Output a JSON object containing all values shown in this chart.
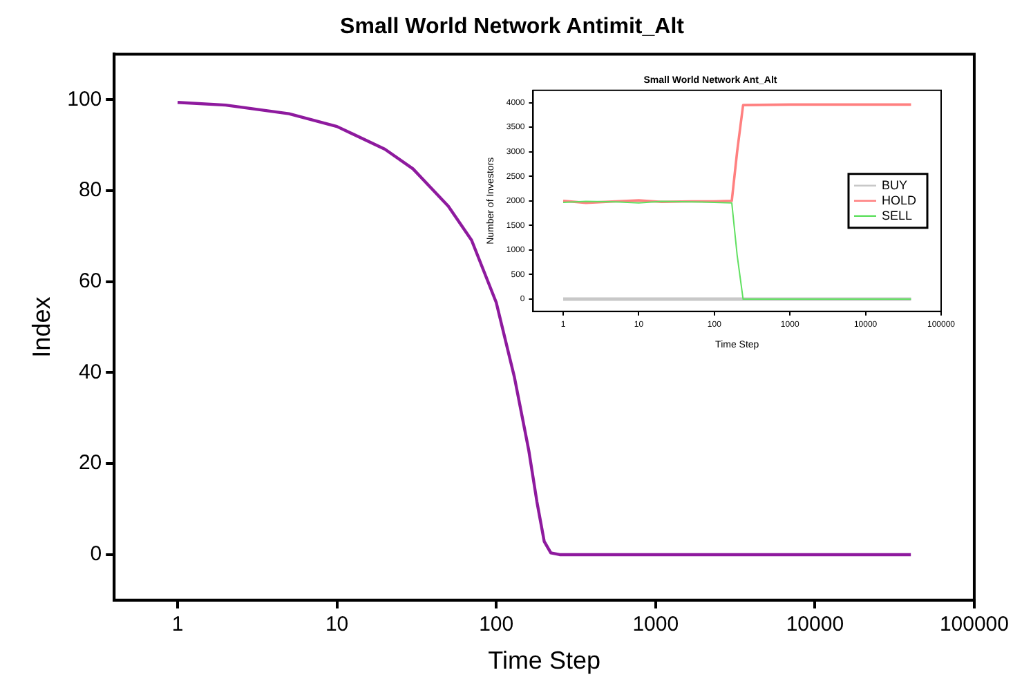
{
  "chart_data": [
    {
      "type": "line",
      "title": "Small World Network Antimit_Alt",
      "xlabel": "Time Step",
      "ylabel": "Index",
      "log": "x",
      "xlim": [
        0.4,
        100000
      ],
      "xticks": [
        1,
        10,
        100,
        1000,
        10000,
        100000
      ],
      "ylim": [
        -10,
        110
      ],
      "yticks": [
        0,
        20,
        40,
        60,
        80,
        100
      ],
      "grid": false,
      "legend": false,
      "marker": "none",
      "line_style": "solid",
      "color": "#8e1a9e",
      "x": [
        1,
        2,
        5,
        10,
        20,
        30,
        50,
        70,
        100,
        130,
        160,
        180,
        200,
        220,
        250,
        1000,
        40000
      ],
      "values": [
        99.4,
        98.8,
        96.9,
        94.1,
        89.1,
        84.8,
        76.6,
        69.1,
        55.4,
        39,
        22.9,
        11.6,
        2.9,
        0.4,
        0,
        0,
        0
      ]
    },
    {
      "type": "line",
      "title": "Small World Network Ant_Alt",
      "xlabel": "Time Step",
      "ylabel": "Number of Investors",
      "log": "x",
      "xlim": [
        0.4,
        100000
      ],
      "xticks": [
        1,
        10,
        100,
        1000,
        10000,
        100000
      ],
      "ylim": [
        -250,
        4250
      ],
      "yticks": [
        0,
        500,
        1000,
        1500,
        2000,
        2500,
        3000,
        3500,
        4000
      ],
      "grid": false,
      "legend": "right",
      "marker": "none",
      "line_style": "solid",
      "x": [
        1,
        2,
        5,
        10,
        20,
        50,
        100,
        170,
        200,
        240,
        1000,
        40000
      ],
      "series": [
        {
          "name": "BUY",
          "color": "#c8c8c8",
          "values": [
            0,
            0,
            0,
            0,
            0,
            0,
            0,
            0,
            0,
            0,
            0,
            0
          ]
        },
        {
          "name": "HOLD",
          "color": "#ff8080",
          "values": [
            2000,
            1960,
            1990,
            2010,
            1980,
            1990,
            1990,
            2000,
            3000,
            3950,
            3960,
            3960
          ]
        },
        {
          "name": "SELL",
          "color": "#60e060",
          "values": [
            1970,
            1990,
            1980,
            1960,
            1990,
            1980,
            1970,
            1960,
            900,
            0,
            0,
            0
          ]
        }
      ]
    }
  ]
}
